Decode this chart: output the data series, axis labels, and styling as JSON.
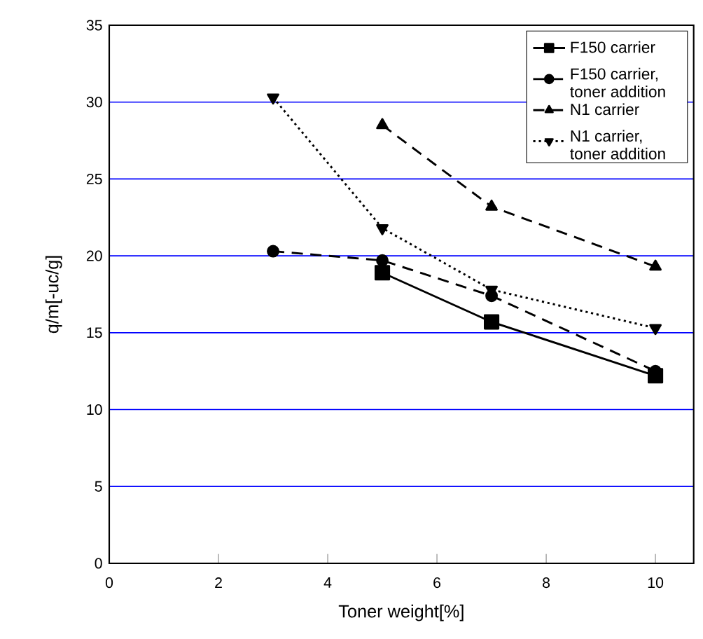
{
  "chart_data": {
    "type": "line",
    "xlabel": "Toner weight[%]",
    "ylabel": "q/m[-uc/g]",
    "xlim": [
      0,
      10.7
    ],
    "xticks": [
      0,
      2,
      4,
      6,
      8,
      10
    ],
    "ylim": [
      0,
      35
    ],
    "yticks": [
      0,
      5,
      10,
      15,
      20,
      25,
      30,
      35
    ],
    "grid": "y",
    "legend": "top right",
    "series": [
      {
        "name": "F150 carrier",
        "color": "#000000",
        "x": [
          5,
          7,
          10
        ],
        "values": [
          18.9,
          15.7,
          12.2
        ],
        "marker": "square",
        "line_style": "solid"
      },
      {
        "name": "F150 carrier, toner addition",
        "color": "#000000",
        "x": [
          3,
          5,
          7,
          10
        ],
        "values": [
          20.3,
          19.7,
          17.4,
          12.5
        ],
        "marker": "circle",
        "line_style": "dashed"
      },
      {
        "name": "N1 carrier",
        "color": "#000000",
        "x": [
          5,
          7,
          10
        ],
        "values": [
          28.5,
          23.2,
          19.3
        ],
        "marker": "triangle",
        "line_style": "dashed"
      },
      {
        "name": "N1 carrier, toner addition",
        "color": "#000000",
        "x": [
          3,
          5,
          7,
          10
        ],
        "values": [
          30.3,
          21.8,
          17.8,
          15.3
        ],
        "marker": "triangle-down",
        "line_style": "dotted"
      }
    ]
  }
}
